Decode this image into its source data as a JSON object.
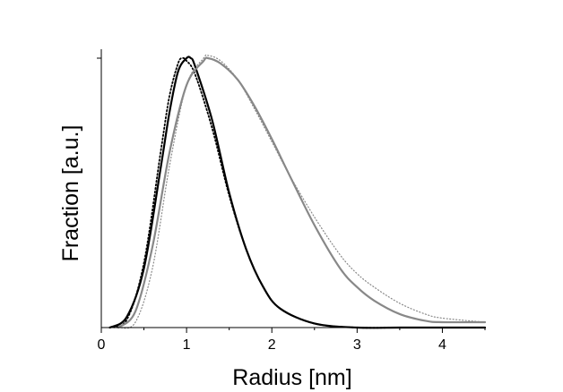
{
  "chart_data": {
    "type": "line",
    "title": "",
    "xlabel": "Radius [nm]",
    "ylabel": "Fraction [a.u.]",
    "xlim": [
      0,
      4.5
    ],
    "ylim": [
      0,
      1
    ],
    "x_ticks": [
      "0",
      "1",
      "2",
      "3",
      "4"
    ],
    "y_ticks": [],
    "grid": false,
    "legend": "none",
    "series": [
      {
        "color": "#000000",
        "style": "solid",
        "x": [
          0.1,
          0.3,
          0.5,
          0.7,
          0.8,
          0.9,
          1.0,
          1.05,
          1.1,
          1.3,
          1.5,
          1.7,
          1.9,
          2.1,
          2.5,
          3.0,
          3.5,
          4.0,
          4.5
        ],
        "y": [
          0.0,
          0.04,
          0.22,
          0.6,
          0.8,
          0.95,
          1.0,
          1.0,
          0.97,
          0.77,
          0.5,
          0.29,
          0.15,
          0.07,
          0.015,
          0.0,
          0.0,
          0.0,
          0.0
        ]
      },
      {
        "color": "#000000",
        "style": "dotted",
        "x": [
          0.1,
          0.3,
          0.5,
          0.7,
          0.8,
          0.9,
          0.95,
          1.0,
          1.1,
          1.3,
          1.5,
          1.7,
          1.9,
          2.1,
          2.5,
          3.0,
          3.5,
          4.0,
          4.5
        ],
        "y": [
          0.0,
          0.03,
          0.24,
          0.66,
          0.86,
          0.98,
          1.0,
          0.99,
          0.94,
          0.74,
          0.49,
          0.29,
          0.15,
          0.07,
          0.015,
          0.0,
          0.0,
          0.0,
          0.0
        ]
      },
      {
        "color": "#888888",
        "style": "solid",
        "x": [
          0.2,
          0.4,
          0.6,
          0.8,
          1.0,
          1.2,
          1.25,
          1.4,
          1.6,
          1.8,
          2.0,
          2.2,
          2.5,
          2.8,
          3.0,
          3.2,
          3.5,
          3.8,
          4.0,
          4.5
        ],
        "y": [
          0.0,
          0.06,
          0.3,
          0.65,
          0.9,
          0.99,
          1.0,
          0.98,
          0.92,
          0.82,
          0.7,
          0.57,
          0.38,
          0.22,
          0.15,
          0.1,
          0.05,
          0.025,
          0.02,
          0.02
        ]
      },
      {
        "color": "#888888",
        "style": "dotted",
        "x": [
          0.2,
          0.4,
          0.6,
          0.8,
          1.0,
          1.2,
          1.25,
          1.4,
          1.6,
          1.8,
          2.0,
          2.2,
          2.5,
          2.8,
          3.0,
          3.2,
          3.5,
          3.8,
          4.0,
          4.5
        ],
        "y": [
          0.0,
          0.02,
          0.22,
          0.6,
          0.9,
          1.0,
          1.01,
          0.99,
          0.92,
          0.81,
          0.69,
          0.57,
          0.41,
          0.27,
          0.2,
          0.15,
          0.09,
          0.05,
          0.035,
          0.02
        ]
      }
    ]
  }
}
